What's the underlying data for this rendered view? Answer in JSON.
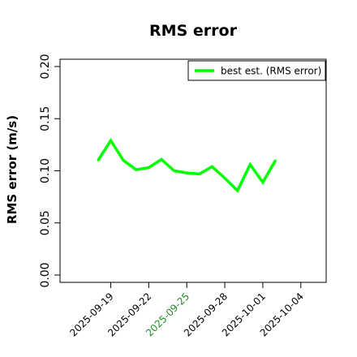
{
  "chart_data": {
    "type": "line",
    "title": "RMS error",
    "xlabel": "",
    "ylabel": "RMS error (m/s)",
    "ylim": [
      0.0,
      0.21
    ],
    "xlim": [
      "2025-09-15",
      "2025-10-06"
    ],
    "y_ticks": [
      "0.00",
      "0.05",
      "0.10",
      "0.15",
      "0.20"
    ],
    "x_ticks": [
      {
        "label": "2025-09-19",
        "color": "#000000"
      },
      {
        "label": "2025-09-22",
        "color": "#000000"
      },
      {
        "label": "2025-09-25",
        "color": "#228b22"
      },
      {
        "label": "2025-09-28",
        "color": "#000000"
      },
      {
        "label": "2025-10-01",
        "color": "#000000"
      },
      {
        "label": "2025-10-04",
        "color": "#000000"
      }
    ],
    "legend_position": "top-right",
    "grid": false,
    "series": [
      {
        "name": "best est. (RMS error)",
        "color": "#00ff00",
        "x": [
          "2025-09-18",
          "2025-09-19",
          "2025-09-20",
          "2025-09-21",
          "2025-09-22",
          "2025-09-23",
          "2025-09-24",
          "2025-09-25",
          "2025-09-26",
          "2025-09-27",
          "2025-09-28",
          "2025-09-29",
          "2025-09-30",
          "2025-10-01",
          "2025-10-02"
        ],
        "values": [
          0.11,
          0.129,
          0.11,
          0.101,
          0.103,
          0.111,
          0.1,
          0.098,
          0.097,
          0.104,
          0.093,
          0.081,
          0.106,
          0.089,
          0.11
        ]
      }
    ]
  }
}
